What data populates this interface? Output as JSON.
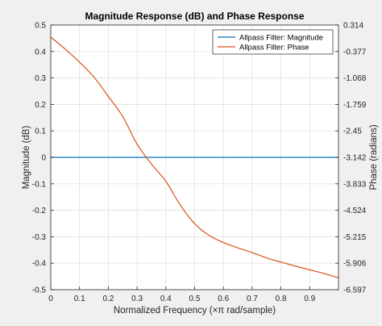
{
  "chart_data": {
    "type": "line",
    "title": "Magnitude Response (dB) and Phase Response",
    "xlabel": "Normalized  Frequency  (×π  rad/sample)",
    "ylabel_left": "Magnitude (dB)",
    "ylabel_right": "Phase (radians)",
    "xlim": [
      0,
      1
    ],
    "ylim_left": [
      -0.5,
      0.5
    ],
    "ylim_right": [
      -6.597,
      0.314
    ],
    "x_ticks": [
      "0",
      "0.1",
      "0.2",
      "0.3",
      "0.4",
      "0.5",
      "0.6",
      "0.7",
      "0.8",
      "0.9"
    ],
    "y_ticks_left": [
      "0.5",
      "0.4",
      "0.3",
      "0.2",
      "0.1",
      "0",
      "-0.1",
      "-0.2",
      "-0.3",
      "-0.4",
      "-0.5"
    ],
    "y_ticks_right": [
      "0.314",
      "-0.377",
      "-1.068",
      "-1.759",
      "-2.45",
      "-3.142",
      "-3.833",
      "-4.524",
      "-5.215",
      "-5.906",
      "-6.597"
    ],
    "grid": true,
    "legend_position": "top-right",
    "series": [
      {
        "name": "Allpass Filter: Magnitude",
        "axis": "left",
        "color": "#0072BD",
        "x": [
          0,
          1
        ],
        "y": [
          0,
          0
        ]
      },
      {
        "name": "Allpass Filter: Phase",
        "axis": "right",
        "color": "#D95319",
        "x": [
          0,
          0.05,
          0.1,
          0.15,
          0.2,
          0.25,
          0.3,
          0.35,
          0.4,
          0.45,
          0.5,
          0.55,
          0.6,
          0.65,
          0.7,
          0.75,
          0.8,
          0.85,
          0.9,
          0.95,
          1.0
        ],
        "y": [
          0.0,
          -0.314,
          -0.657,
          -1.046,
          -1.554,
          -2.073,
          -2.799,
          -3.317,
          -3.766,
          -4.386,
          -4.873,
          -5.177,
          -5.366,
          -5.504,
          -5.628,
          -5.766,
          -5.877,
          -5.981,
          -6.078,
          -6.175,
          -6.286
        ]
      }
    ]
  }
}
